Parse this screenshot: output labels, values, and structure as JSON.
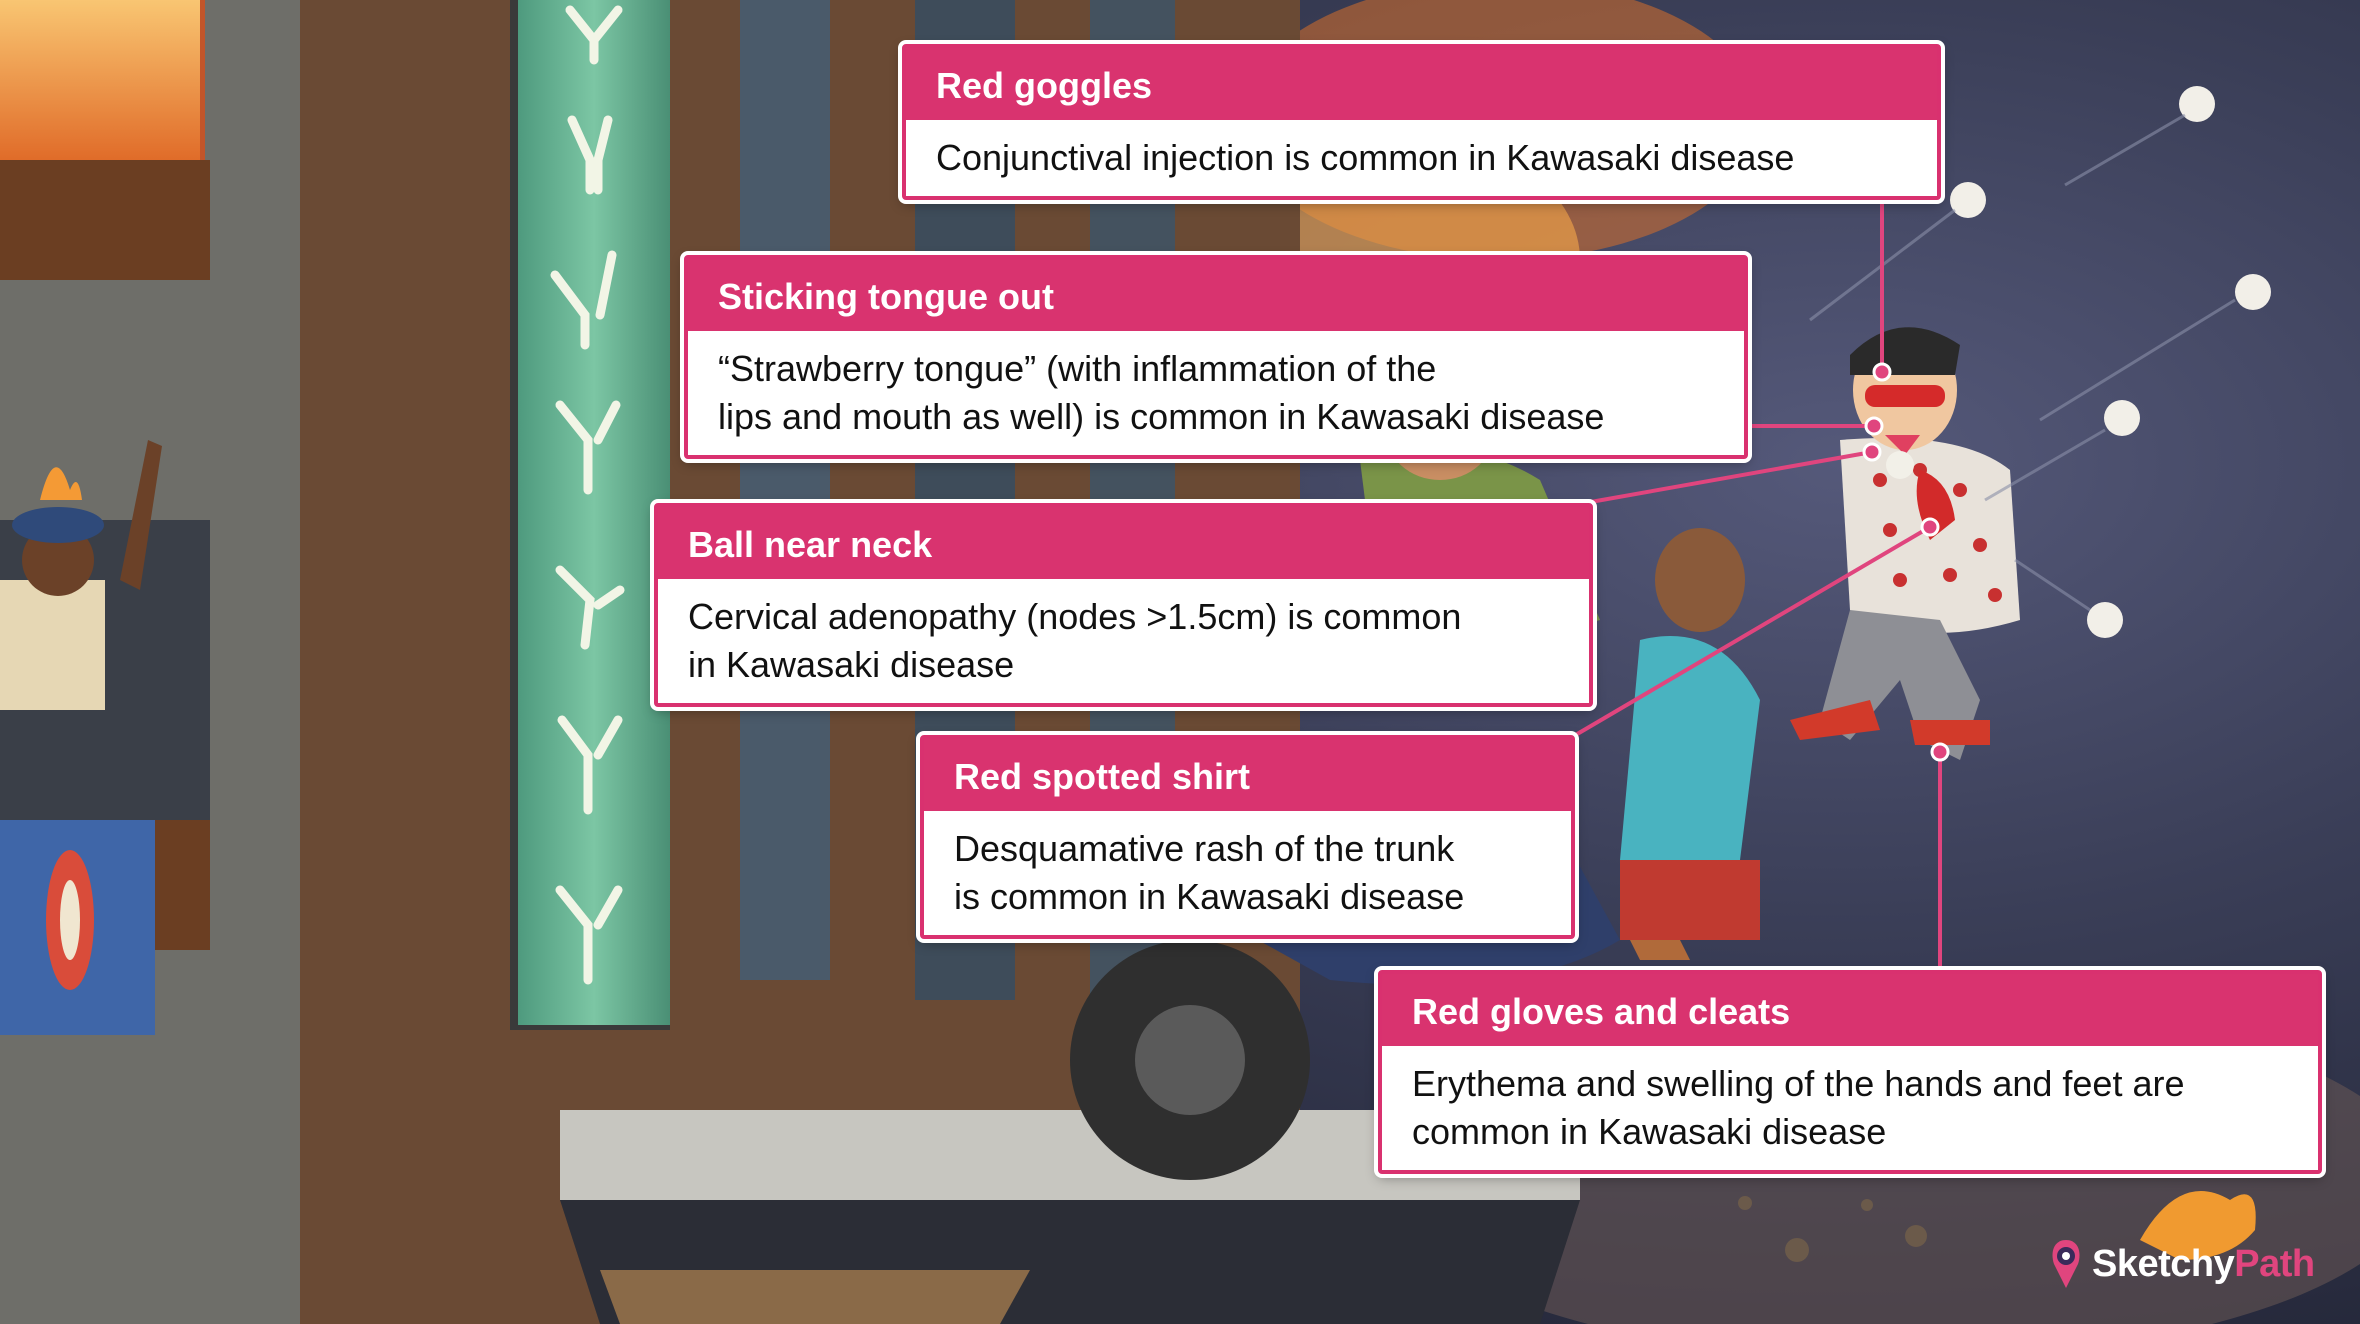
{
  "callouts": [
    {
      "title": "Red goggles",
      "body": "Conjunctival injection is common in Kawasaki disease"
    },
    {
      "title": "Sticking tongue out",
      "body": "“Strawberry tongue” (with inflammation of the\nlips and mouth as well) is common in Kawasaki disease"
    },
    {
      "title": "Ball near neck",
      "body": "Cervical adenopathy (nodes >1.5cm) is common\nin Kawasaki disease"
    },
    {
      "title": "Red spotted shirt",
      "body": "Desquamative rash of the trunk\nis common in Kawasaki disease"
    },
    {
      "title": "Red gloves and cleats",
      "body": "Erythema and swelling of the hands and feet are\ncommon in Kawasaki disease"
    }
  ],
  "brand": {
    "part1": "Sketchy",
    "part2": "Path"
  },
  "colors": {
    "accent": "#d9336f",
    "brand_pink": "#e0457e",
    "leader_line": "#e0457e"
  }
}
